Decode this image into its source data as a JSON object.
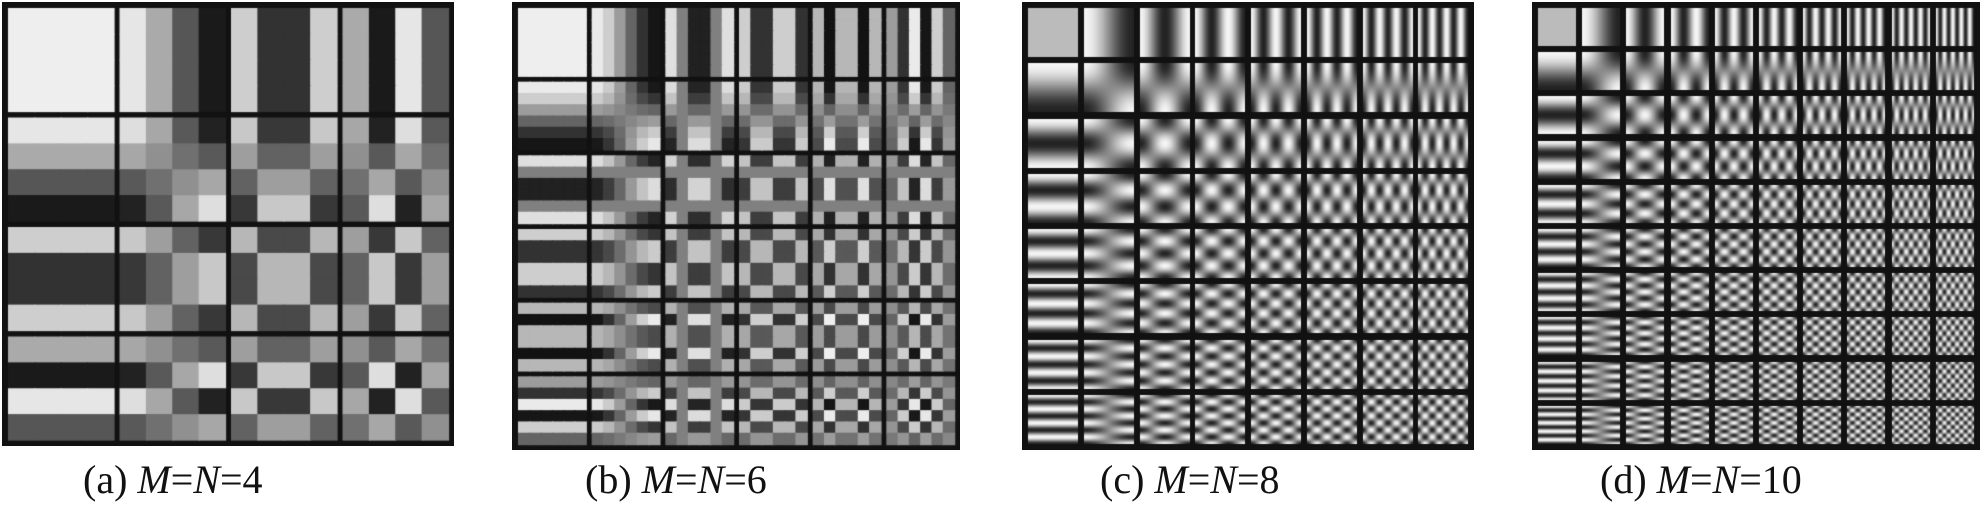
{
  "figure": {
    "panels": [
      {
        "tag": "(a)",
        "var1": "M",
        "var2": "N",
        "n": 4,
        "n_label": "4"
      },
      {
        "tag": "(b)",
        "var1": "M",
        "var2": "N",
        "n": 6,
        "n_label": "6"
      },
      {
        "tag": "(c)",
        "var1": "M",
        "var2": "N",
        "n": 8,
        "n_label": "8"
      },
      {
        "tag": "(d)",
        "var1": "M",
        "var2": "N",
        "n": 10,
        "n_label": "10"
      }
    ],
    "basis": "2D DCT basis images",
    "colors": {
      "separator": "#111111",
      "background": "#ffffff"
    }
  }
}
